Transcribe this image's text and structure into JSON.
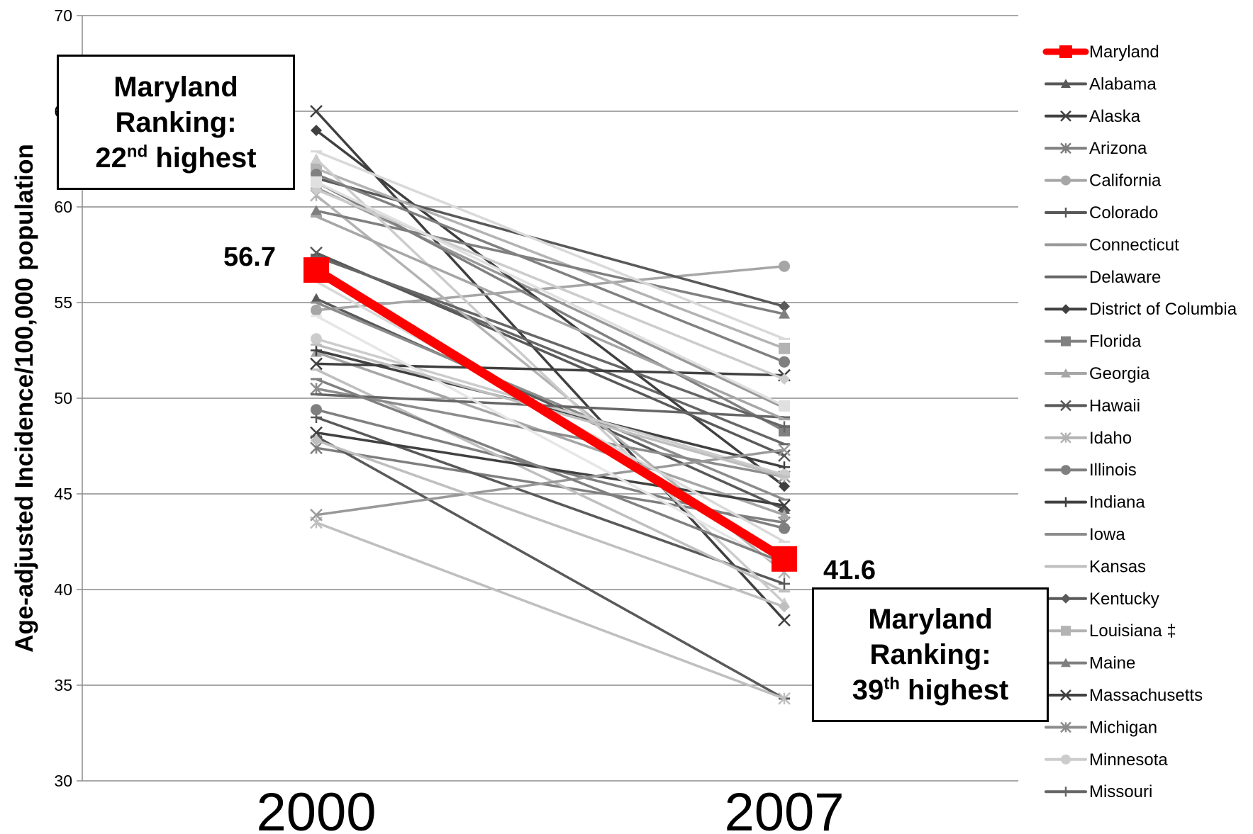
{
  "chart_data": {
    "type": "line",
    "ylabel": "Age-adjusted Incidence/100,000 population",
    "xlabel": "",
    "title": "",
    "categories": [
      "2000",
      "2007"
    ],
    "ylim": [
      30,
      70
    ],
    "y_ticks": [
      30,
      35,
      40,
      45,
      50,
      55,
      60,
      65,
      70
    ],
    "grid": true,
    "legend_position": "right",
    "highlight": {
      "name": "Maryland",
      "color": "#ff0000",
      "marker": "square",
      "values": [
        56.7,
        41.6
      ],
      "value_labels": [
        "56.7",
        "41.6"
      ]
    },
    "series": [
      {
        "name": "Maryland",
        "values": [
          56.7,
          41.6
        ],
        "marker": "square",
        "color": "#ff0000"
      },
      {
        "name": "Alabama",
        "values": [
          55.2,
          44.2
        ],
        "marker": "triangle",
        "color": "#595959"
      },
      {
        "name": "Alaska",
        "values": [
          65.0,
          38.4
        ],
        "marker": "x",
        "color": "#404040"
      },
      {
        "name": "Arizona",
        "values": [
          47.4,
          43.5
        ],
        "marker": "star",
        "color": "#7f7f7f"
      },
      {
        "name": "California",
        "values": [
          54.6,
          56.9
        ],
        "marker": "circle",
        "color": "#a6a6a6"
      },
      {
        "name": "Colorado",
        "values": [
          49.0,
          40.3
        ],
        "marker": "plus",
        "color": "#595959"
      },
      {
        "name": "Connecticut",
        "values": [
          61.0,
          49.5
        ],
        "marker": "dash",
        "color": "#999999"
      },
      {
        "name": "Delaware",
        "values": [
          57.5,
          47.6
        ],
        "marker": "dash",
        "color": "#666666"
      },
      {
        "name": "District of Columbia",
        "values": [
          64.0,
          45.4
        ],
        "marker": "diamond",
        "color": "#404040"
      },
      {
        "name": "Florida",
        "values": [
          61.3,
          48.3
        ],
        "marker": "square",
        "color": "#808080"
      },
      {
        "name": "Georgia",
        "values": [
          52.4,
          43.9
        ],
        "marker": "triangle",
        "color": "#a6a6a6"
      },
      {
        "name": "Hawaii",
        "values": [
          57.6,
          47.0
        ],
        "marker": "x",
        "color": "#595959"
      },
      {
        "name": "Idaho",
        "values": [
          60.6,
          40.9
        ],
        "marker": "star",
        "color": "#b3b3b3"
      },
      {
        "name": "Illinois",
        "values": [
          49.4,
          43.2
        ],
        "marker": "circle",
        "color": "#7f7f7f"
      },
      {
        "name": "Indiana",
        "values": [
          52.5,
          46.4
        ],
        "marker": "plus",
        "color": "#404040"
      },
      {
        "name": "Iowa",
        "values": [
          55.0,
          44.7
        ],
        "marker": "dash",
        "color": "#8c8c8c"
      },
      {
        "name": "Kansas",
        "values": [
          51.5,
          39.9
        ],
        "marker": "dash",
        "color": "#bfbfbf"
      },
      {
        "name": "Kentucky",
        "values": [
          61.5,
          54.8
        ],
        "marker": "diamond",
        "color": "#595959"
      },
      {
        "name": "Louisiana ‡",
        "values": [
          62.0,
          52.6
        ],
        "marker": "square",
        "color": "#b3b3b3"
      },
      {
        "name": "Maine",
        "values": [
          59.8,
          54.4
        ],
        "marker": "triangle",
        "color": "#7f7f7f"
      },
      {
        "name": "Massachusetts",
        "values": [
          48.2,
          44.4
        ],
        "marker": "x",
        "color": "#404040"
      },
      {
        "name": "Michigan",
        "values": [
          50.5,
          45.9
        ],
        "marker": "star",
        "color": "#8c8c8c"
      },
      {
        "name": "Minnesota",
        "values": [
          53.1,
          46.0
        ],
        "marker": "circle",
        "color": "#cccccc"
      },
      {
        "name": "Missouri",
        "values": [
          57.4,
          48.5
        ],
        "marker": "plus",
        "color": "#666666"
      },
      {
        "name": "",
        "values": [
          62.9,
          53.1
        ],
        "marker": "dash",
        "color": "#d9d9d9"
      },
      {
        "name": "",
        "values": [
          62.5,
          39.3
        ],
        "marker": "triangle",
        "color": "#cccccc"
      },
      {
        "name": "",
        "values": [
          48.0,
          34.3
        ],
        "marker": "dash",
        "color": "#595959"
      },
      {
        "name": "",
        "values": [
          43.5,
          34.3
        ],
        "marker": "star",
        "color": "#bfbfbf"
      },
      {
        "name": "",
        "values": [
          43.9,
          47.3
        ],
        "marker": "x",
        "color": "#999999"
      },
      {
        "name": "",
        "values": [
          51.8,
          51.2
        ],
        "marker": "x",
        "color": "#404040"
      },
      {
        "name": "",
        "values": [
          50.2,
          49.0
        ],
        "marker": "dash",
        "color": "#666666"
      },
      {
        "name": "",
        "values": [
          47.8,
          39.1
        ],
        "marker": "diamond",
        "color": "#bfbfbf"
      },
      {
        "name": "",
        "values": [
          60.9,
          51.0
        ],
        "marker": "diamond",
        "color": "#cccccc"
      },
      {
        "name": "",
        "values": [
          61.7,
          51.9
        ],
        "marker": "circle",
        "color": "#808080"
      },
      {
        "name": "",
        "values": [
          61.3,
          49.6
        ],
        "marker": "square",
        "color": "#e0e0e0"
      },
      {
        "name": "",
        "values": [
          59.5,
          48.9
        ],
        "marker": "dash",
        "color": "#a6a6a6"
      },
      {
        "name": "",
        "values": [
          56.1,
          42.5
        ],
        "marker": "dash",
        "color": "#d9d9d9"
      },
      {
        "name": "",
        "values": [
          54.3,
          41.2
        ],
        "marker": "dash",
        "color": "#e6e6e6"
      },
      {
        "name": "",
        "values": [
          52.8,
          45.9
        ],
        "marker": "dash",
        "color": "#bfbfbf"
      },
      {
        "name": "",
        "values": [
          51.0,
          41.4
        ],
        "marker": "dash",
        "color": "#808080"
      }
    ]
  },
  "annotations": {
    "box_2000": {
      "line1": "Maryland",
      "line2": "Ranking:",
      "rank_num": "22",
      "rank_sup": "nd",
      "rank_rest": " highest"
    },
    "box_2007": {
      "line1": "Maryland",
      "line2": "Ranking:",
      "rank_num": "39",
      "rank_sup": "th",
      "rank_rest": " highest"
    }
  }
}
